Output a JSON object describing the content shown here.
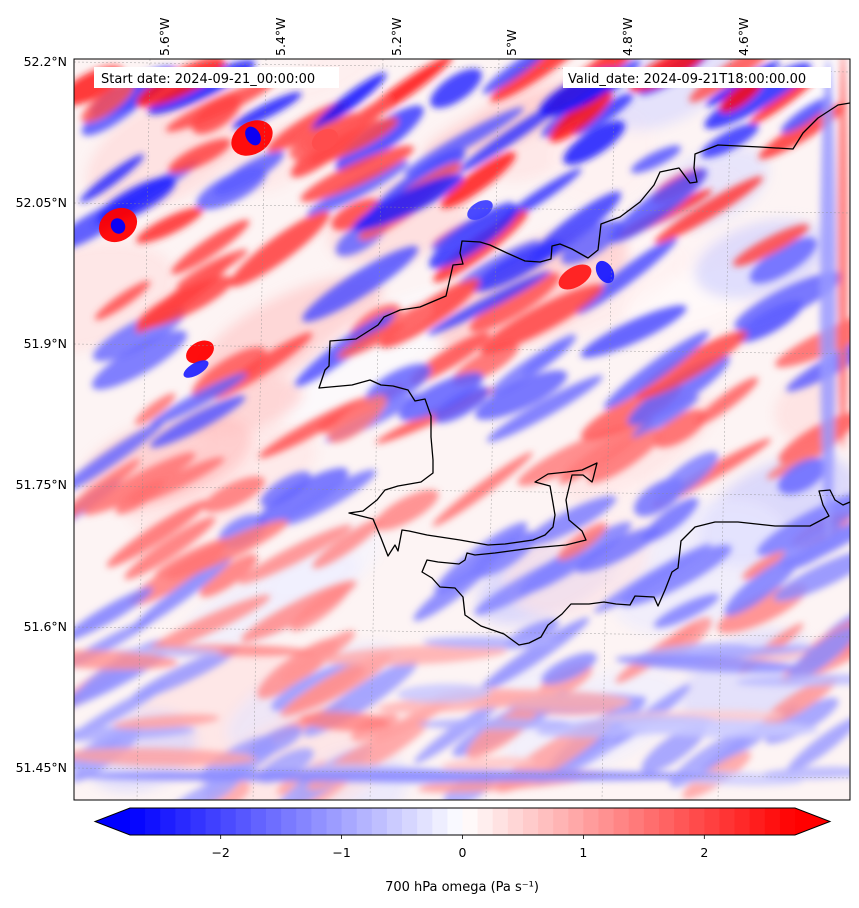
{
  "map": {
    "start_date_label": "Start date: 2024-09-21_00:00:00",
    "valid_date_label": "Valid_date: 2024-09-21T18:00:00.00",
    "lon_ticks": [
      "5.6°W",
      "5.4°W",
      "5.2°W",
      "5°W",
      "4.8°W",
      "4.6°W"
    ],
    "lat_ticks": [
      "52.2°N",
      "52.05°N",
      "51.9°N",
      "51.75°N",
      "51.6°N",
      "51.45°N"
    ],
    "gridlines": "dashed",
    "coastline_color": "#000000"
  },
  "colorbar": {
    "label": "700 hPa omega (Pa s⁻¹)",
    "ticks": [
      "−2",
      "−1",
      "0",
      "1",
      "2"
    ],
    "tick_values": [
      -2,
      -1,
      0,
      1,
      2
    ],
    "vmin": -2.75,
    "vmax": 2.75,
    "extend": "both",
    "colormap": "bwr",
    "low_color": "#0000ff",
    "mid_color": "#ffffff",
    "high_color": "#ff0000"
  }
}
